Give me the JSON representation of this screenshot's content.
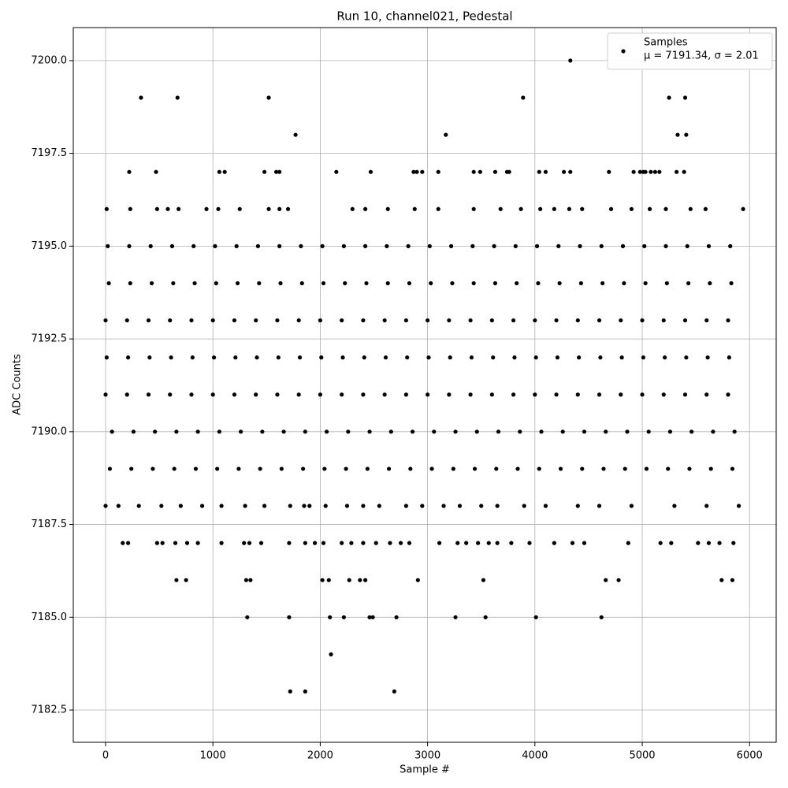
{
  "chart_data": {
    "type": "scatter",
    "title": "Run 10, channel021, Pedestal",
    "x_label": "Sample #",
    "y_label": "ADC Counts",
    "xlim": [
      -301,
      6248
    ],
    "ylim": [
      7181.63,
      7200.89
    ],
    "xticks": [
      0,
      1000,
      2000,
      3000,
      4000,
      5000,
      6000
    ],
    "yticks": [
      {
        "value": 7182.5,
        "label": "7182.5"
      },
      {
        "value": 7185,
        "label": "7185.0"
      },
      {
        "value": 7187.5,
        "label": "7187.5"
      },
      {
        "value": 7190,
        "label": "7190.0"
      },
      {
        "value": 7192.5,
        "label": "7192.5"
      },
      {
        "value": 7195,
        "label": "7195.0"
      },
      {
        "value": 7197.5,
        "label": "7197.5"
      },
      {
        "value": 7200,
        "label": "7200.0"
      }
    ],
    "grid": true,
    "legend": "upper right",
    "legend_note": "μ = 7191.34, σ = 2.01",
    "series": [
      {
        "name": "Samples",
        "color": "#000000",
        "x": [
          4330,
          330,
          670,
          1520,
          3890,
          5250,
          5400,
          1770,
          3170,
          5330,
          5410,
          220,
          470,
          1060,
          1110,
          1480,
          1590,
          1620,
          2150,
          2470,
          2870,
          2900,
          2950,
          3100,
          3430,
          3490,
          3630,
          3740,
          3760,
          4040,
          4100,
          4270,
          4330,
          4690,
          4920,
          4980,
          5010,
          5030,
          5080,
          5120,
          5160,
          5320,
          5390,
          10,
          230,
          480,
          580,
          680,
          940,
          1050,
          1250,
          1520,
          1620,
          1700,
          2300,
          2420,
          2630,
          2880,
          3100,
          3430,
          3680,
          3870,
          4050,
          4180,
          4320,
          4440,
          4710,
          4900,
          5070,
          5220,
          5450,
          5590,
          5940,
          20,
          220,
          420,
          620,
          820,
          1020,
          1220,
          1420,
          1620,
          1820,
          2020,
          2220,
          2420,
          2620,
          2820,
          3020,
          3220,
          3420,
          3620,
          3820,
          4020,
          4220,
          4420,
          4620,
          4820,
          5020,
          5220,
          5420,
          5620,
          5820,
          30,
          230,
          430,
          630,
          830,
          1030,
          1230,
          1430,
          1630,
          1830,
          2030,
          2230,
          2430,
          2630,
          2830,
          3030,
          3230,
          3430,
          3630,
          3830,
          4030,
          4230,
          4430,
          4630,
          4830,
          5030,
          5230,
          5430,
          5630,
          5830,
          0,
          200,
          400,
          600,
          800,
          1000,
          1200,
          1400,
          1600,
          1800,
          2000,
          2200,
          2400,
          2600,
          2800,
          3000,
          3200,
          3400,
          3600,
          3800,
          4000,
          4200,
          4400,
          4600,
          4800,
          5000,
          5200,
          5400,
          5600,
          5800,
          10,
          210,
          410,
          610,
          810,
          1010,
          1210,
          1410,
          1610,
          1810,
          2010,
          2210,
          2410,
          2610,
          2810,
          3010,
          3210,
          3410,
          3610,
          3810,
          4010,
          4210,
          4410,
          4610,
          4810,
          5010,
          5210,
          5410,
          5610,
          5810,
          0,
          200,
          400,
          600,
          800,
          1000,
          1200,
          1400,
          1600,
          1800,
          2000,
          2200,
          2400,
          2600,
          2800,
          3000,
          3200,
          3400,
          3600,
          3800,
          4000,
          4200,
          4400,
          4600,
          4800,
          5000,
          5200,
          5400,
          5600,
          5800,
          60,
          260,
          460,
          660,
          860,
          1060,
          1260,
          1460,
          1660,
          1860,
          2060,
          2260,
          2460,
          2660,
          2860,
          3060,
          3260,
          3460,
          3660,
          3860,
          4060,
          4260,
          4460,
          4660,
          4860,
          5060,
          5260,
          5460,
          5660,
          5860,
          40,
          240,
          440,
          640,
          840,
          1040,
          1240,
          1440,
          1640,
          1840,
          2040,
          2240,
          2440,
          2640,
          2840,
          3040,
          3240,
          3440,
          3640,
          3840,
          4040,
          4240,
          4440,
          4640,
          4840,
          5040,
          5240,
          5440,
          5640,
          5840,
          0,
          120,
          310,
          520,
          700,
          900,
          1080,
          1300,
          1480,
          1720,
          1850,
          1900,
          2050,
          2250,
          2400,
          2550,
          2800,
          2950,
          3150,
          3300,
          3500,
          3650,
          3900,
          4100,
          4400,
          4600,
          4900,
          5300,
          5600,
          5900,
          160,
          210,
          480,
          530,
          650,
          760,
          860,
          1080,
          1290,
          1340,
          1450,
          1710,
          1860,
          1950,
          2030,
          2200,
          2290,
          2400,
          2520,
          2650,
          2750,
          2830,
          3110,
          3280,
          3360,
          3470,
          3570,
          3650,
          3780,
          3950,
          4180,
          4350,
          4460,
          4870,
          5170,
          5270,
          5520,
          5620,
          5720,
          5850,
          660,
          750,
          1310,
          1350,
          2020,
          2080,
          2270,
          2370,
          2420,
          2910,
          3520,
          4660,
          4780,
          5740,
          5840,
          1320,
          1710,
          2090,
          2220,
          2460,
          2490,
          2710,
          3260,
          3540,
          4010,
          4620,
          2100,
          1720,
          1860,
          2690
        ],
        "values": [
          7200,
          7199,
          7199,
          7199,
          7199,
          7199,
          7199,
          7198,
          7198,
          7198,
          7198,
          7197,
          7197,
          7197,
          7197,
          7197,
          7197,
          7197,
          7197,
          7197,
          7197,
          7197,
          7197,
          7197,
          7197,
          7197,
          7197,
          7197,
          7197,
          7197,
          7197,
          7197,
          7197,
          7197,
          7197,
          7197,
          7197,
          7197,
          7197,
          7197,
          7197,
          7197,
          7197,
          7196,
          7196,
          7196,
          7196,
          7196,
          7196,
          7196,
          7196,
          7196,
          7196,
          7196,
          7196,
          7196,
          7196,
          7196,
          7196,
          7196,
          7196,
          7196,
          7196,
          7196,
          7196,
          7196,
          7196,
          7196,
          7196,
          7196,
          7196,
          7196,
          7196,
          7195,
          7195,
          7195,
          7195,
          7195,
          7195,
          7195,
          7195,
          7195,
          7195,
          7195,
          7195,
          7195,
          7195,
          7195,
          7195,
          7195,
          7195,
          7195,
          7195,
          7195,
          7195,
          7195,
          7195,
          7195,
          7195,
          7195,
          7195,
          7195,
          7195,
          7194,
          7194,
          7194,
          7194,
          7194,
          7194,
          7194,
          7194,
          7194,
          7194,
          7194,
          7194,
          7194,
          7194,
          7194,
          7194,
          7194,
          7194,
          7194,
          7194,
          7194,
          7194,
          7194,
          7194,
          7194,
          7194,
          7194,
          7194,
          7194,
          7194,
          7193,
          7193,
          7193,
          7193,
          7193,
          7193,
          7193,
          7193,
          7193,
          7193,
          7193,
          7193,
          7193,
          7193,
          7193,
          7193,
          7193,
          7193,
          7193,
          7193,
          7193,
          7193,
          7193,
          7193,
          7193,
          7193,
          7193,
          7193,
          7193,
          7193,
          7192,
          7192,
          7192,
          7192,
          7192,
          7192,
          7192,
          7192,
          7192,
          7192,
          7192,
          7192,
          7192,
          7192,
          7192,
          7192,
          7192,
          7192,
          7192,
          7192,
          7192,
          7192,
          7192,
          7192,
          7192,
          7192,
          7192,
          7192,
          7192,
          7192,
          7191,
          7191,
          7191,
          7191,
          7191,
          7191,
          7191,
          7191,
          7191,
          7191,
          7191,
          7191,
          7191,
          7191,
          7191,
          7191,
          7191,
          7191,
          7191,
          7191,
          7191,
          7191,
          7191,
          7191,
          7191,
          7191,
          7191,
          7191,
          7191,
          7191,
          7190,
          7190,
          7190,
          7190,
          7190,
          7190,
          7190,
          7190,
          7190,
          7190,
          7190,
          7190,
          7190,
          7190,
          7190,
          7190,
          7190,
          7190,
          7190,
          7190,
          7190,
          7190,
          7190,
          7190,
          7190,
          7190,
          7190,
          7190,
          7190,
          7190,
          7189,
          7189,
          7189,
          7189,
          7189,
          7189,
          7189,
          7189,
          7189,
          7189,
          7189,
          7189,
          7189,
          7189,
          7189,
          7189,
          7189,
          7189,
          7189,
          7189,
          7189,
          7189,
          7189,
          7189,
          7189,
          7189,
          7189,
          7189,
          7189,
          7189,
          7188,
          7188,
          7188,
          7188,
          7188,
          7188,
          7188,
          7188,
          7188,
          7188,
          7188,
          7188,
          7188,
          7188,
          7188,
          7188,
          7188,
          7188,
          7188,
          7188,
          7188,
          7188,
          7188,
          7188,
          7188,
          7188,
          7188,
          7188,
          7188,
          7188,
          7187,
          7187,
          7187,
          7187,
          7187,
          7187,
          7187,
          7187,
          7187,
          7187,
          7187,
          7187,
          7187,
          7187,
          7187,
          7187,
          7187,
          7187,
          7187,
          7187,
          7187,
          7187,
          7187,
          7187,
          7187,
          7187,
          7187,
          7187,
          7187,
          7187,
          7187,
          7187,
          7187,
          7187,
          7187,
          7187,
          7187,
          7187,
          7187,
          7187,
          7186,
          7186,
          7186,
          7186,
          7186,
          7186,
          7186,
          7186,
          7186,
          7186,
          7186,
          7186,
          7186,
          7186,
          7186,
          7185,
          7185,
          7185,
          7185,
          7185,
          7185,
          7185,
          7185,
          7185,
          7185,
          7185,
          7184,
          7183,
          7183,
          7183
        ]
      }
    ]
  }
}
